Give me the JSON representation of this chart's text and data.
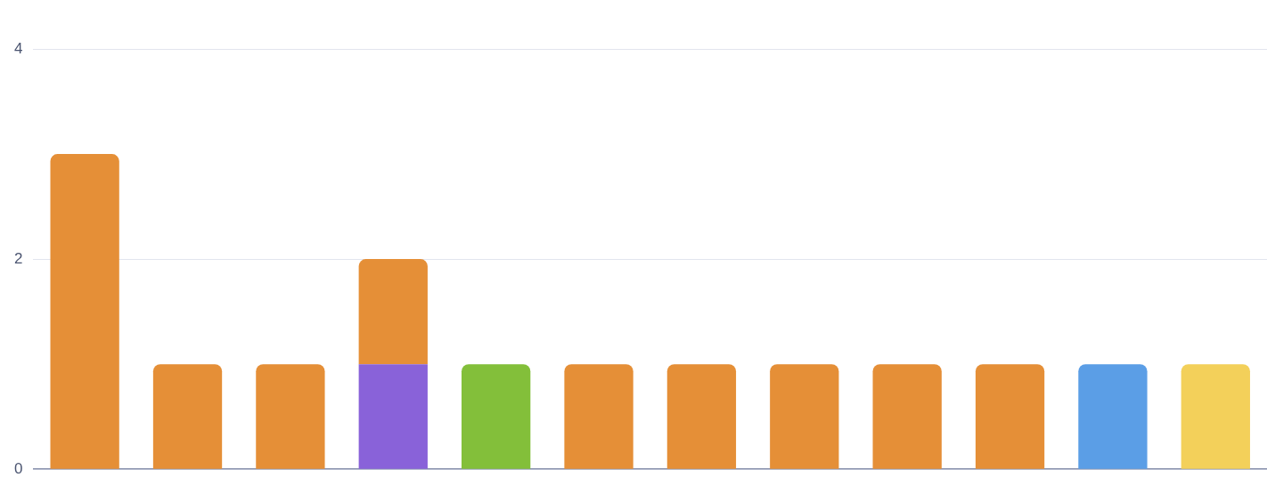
{
  "chart_data": {
    "type": "bar",
    "stacked": true,
    "categories": [
      null,
      null,
      null,
      null,
      null,
      null,
      null,
      null,
      null,
      null,
      null,
      null
    ],
    "series": [
      {
        "color": "#8962d9",
        "values": [
          null,
          null,
          null,
          1,
          null,
          null,
          null,
          null,
          null,
          null,
          null,
          null
        ]
      },
      {
        "color": "#83bf3a",
        "values": [
          null,
          null,
          null,
          null,
          1,
          null,
          null,
          null,
          null,
          null,
          null,
          null
        ]
      },
      {
        "color": "#5b9ee6",
        "values": [
          null,
          null,
          null,
          null,
          null,
          null,
          null,
          null,
          null,
          null,
          1,
          null
        ]
      },
      {
        "color": "#f3d05a",
        "values": [
          null,
          null,
          null,
          null,
          null,
          null,
          null,
          null,
          null,
          null,
          null,
          1
        ]
      },
      {
        "color": "#e58f37",
        "values": [
          3,
          1,
          1,
          1,
          null,
          1,
          1,
          1,
          1,
          1,
          null,
          null
        ]
      }
    ],
    "ylim": [
      0,
      4
    ],
    "yticks": [
      0,
      2,
      4
    ],
    "grid": "y",
    "legend": false
  }
}
